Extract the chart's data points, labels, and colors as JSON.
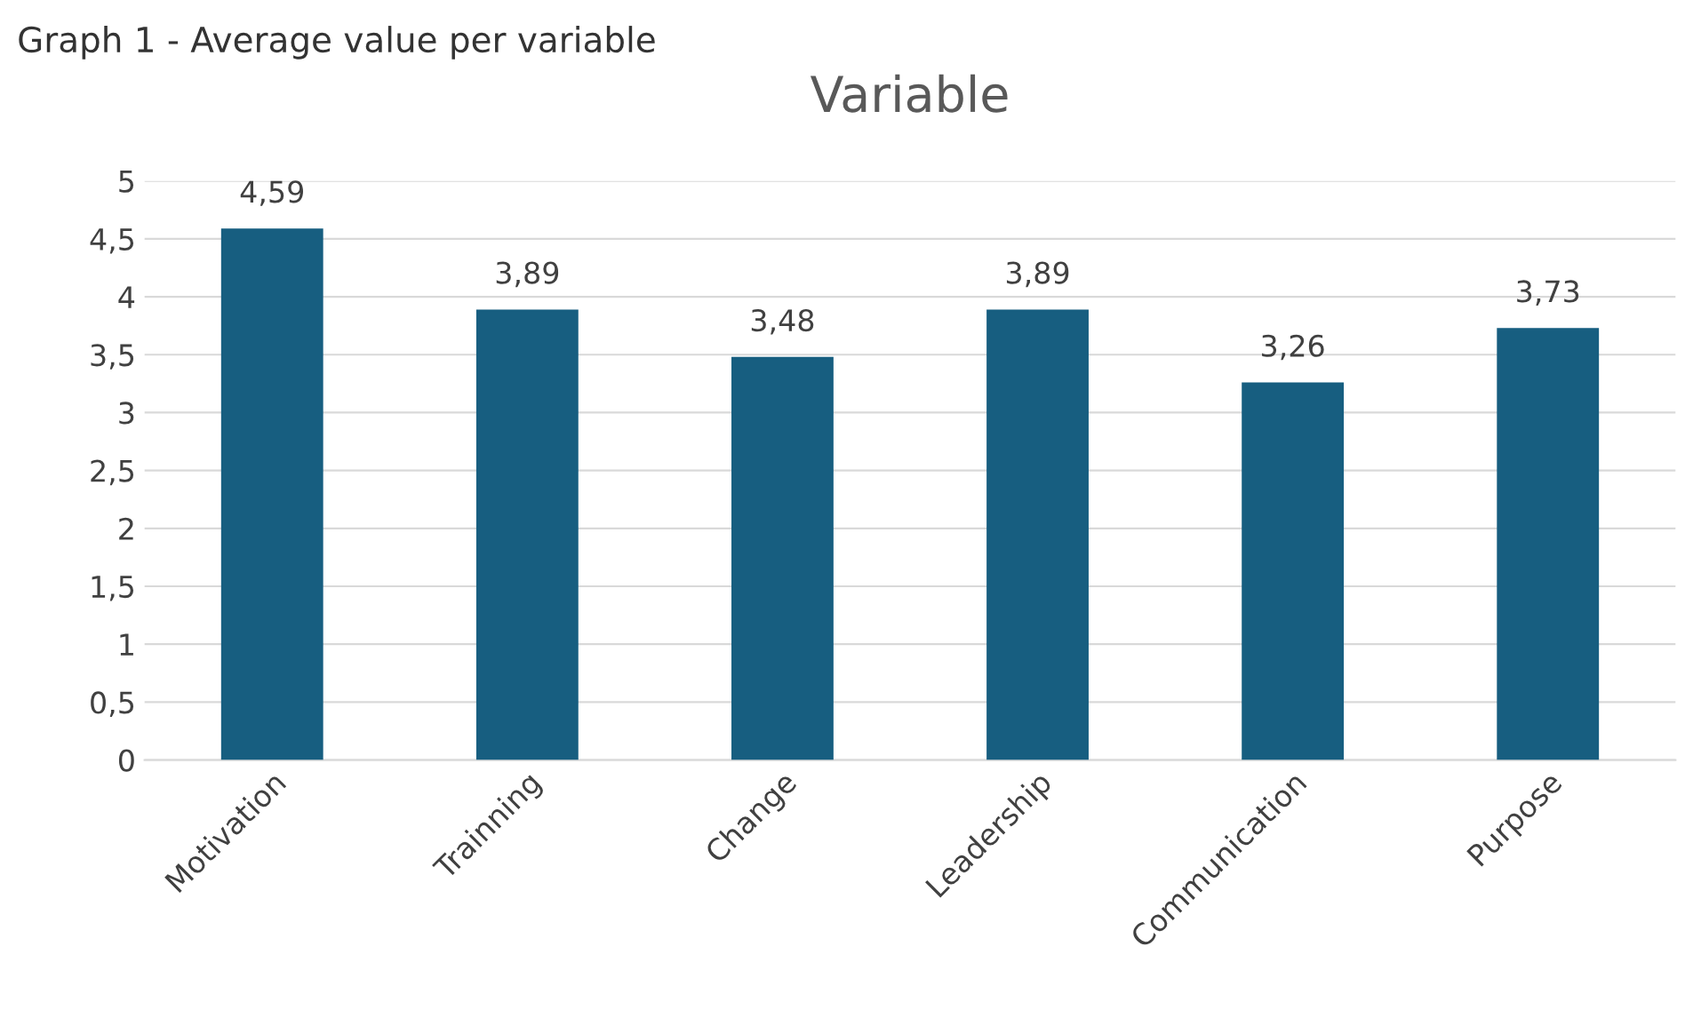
{
  "chart_data": {
    "type": "bar",
    "title": "Variable",
    "annotations": [
      "Graph 1 - Average value per variable"
    ],
    "categories": [
      "Motivation",
      "Trainning",
      "Change",
      "Leadership",
      "Communication",
      "Purpose"
    ],
    "values": [
      4.59,
      3.89,
      3.48,
      3.89,
      3.26,
      3.73
    ],
    "value_labels": [
      "4,59",
      "3,89",
      "3,48",
      "3,89",
      "3,26",
      "3,73"
    ],
    "color": "#175e80",
    "ylim": [
      0,
      5
    ],
    "yticks": [
      0,
      {
        "value": 0.5,
        "label": "0,5"
      },
      1,
      {
        "value": 1.5,
        "label": "1,5"
      },
      2,
      {
        "value": 2.5,
        "label": "2,5"
      },
      3,
      {
        "value": 3.5,
        "label": "3,5"
      },
      4,
      {
        "value": 4.5,
        "label": "4,5"
      },
      5
    ],
    "grid": "y",
    "legend": false
  }
}
